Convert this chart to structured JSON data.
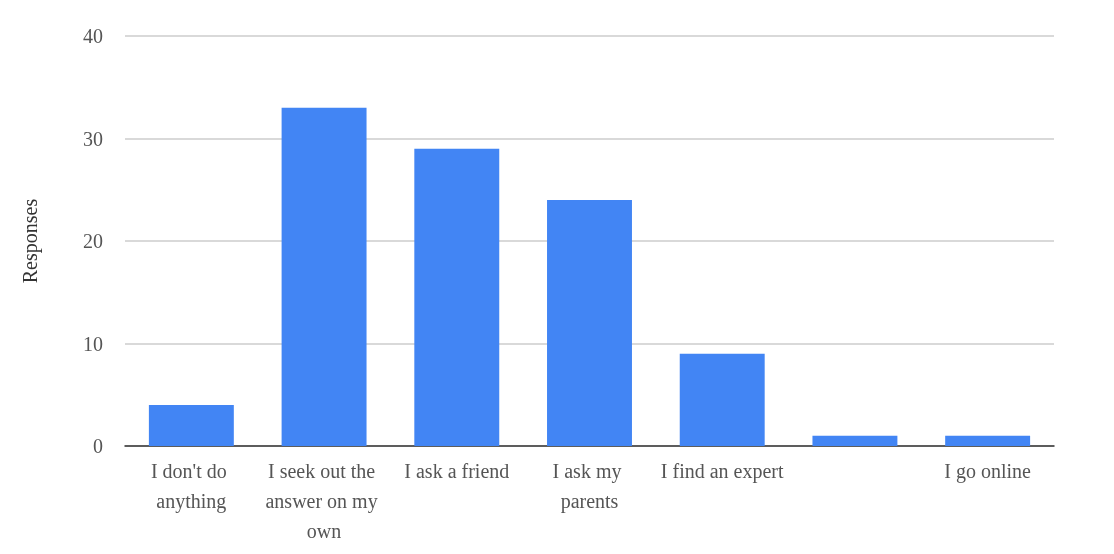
{
  "chart_data": {
    "type": "bar",
    "ylabel": "Responses",
    "categories": [
      "I don't do anything",
      "I seek out the answer on my own",
      "I ask a friend",
      "I ask my parents",
      "I find an expert",
      null,
      "I go online"
    ],
    "values": [
      4,
      33,
      29,
      24,
      9,
      1,
      1
    ],
    "color": "#4285f4",
    "ylim": [
      0,
      40
    ],
    "yticks": [
      0,
      10,
      20,
      30,
      40
    ],
    "grid": "y"
  }
}
